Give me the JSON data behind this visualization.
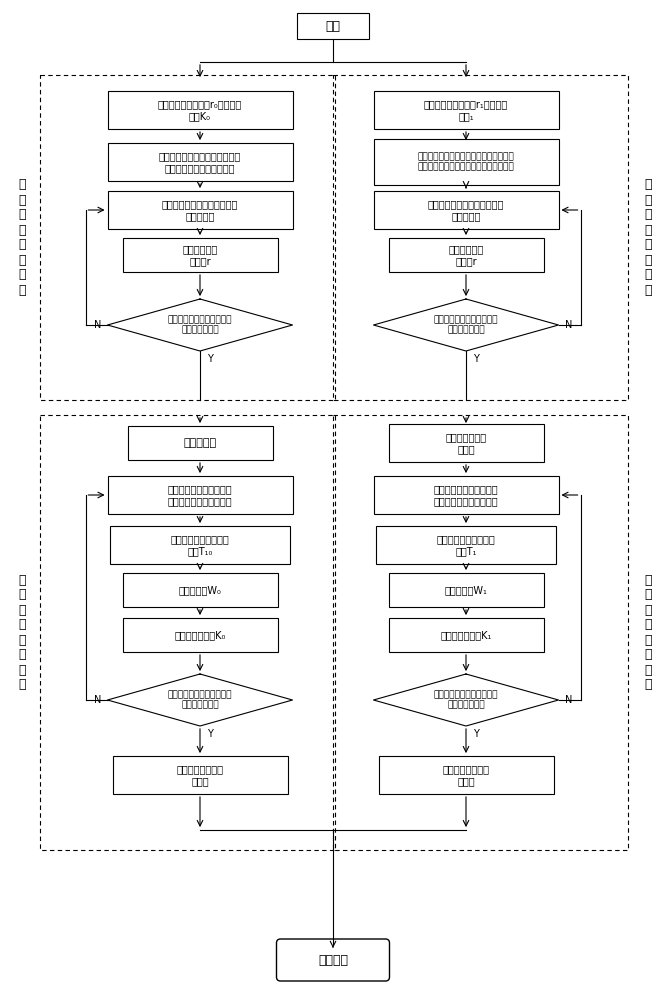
{
  "bg_color": "#ffffff",
  "label_left_top": "解\n锁\n滑\n差\n率\n的\n控\n制",
  "label_left_bottom": "解\n锁\n转\n矩\n比\n的\n控\n制",
  "label_right_top": "闭\n锁\n滑\n差\n率\n的\n控\n制",
  "label_right_bottom": "闭\n锁\n转\n矩\n比\n的\n控\n制",
  "nodes": {
    "start": "开始",
    "end": "程序结束",
    "L_box1": "设定解锁目标滑差率r₀和目标转\n矩比K₀",
    "L_box2": "小油泵启动，电子控制单元控制\n三位四通换向阀在右位工作",
    "L_box3": "实时检测液力变矩器输入轴和\n输出轴转速",
    "L_box4": "实时计算实际\n滑差率r",
    "L_dia1": "判断实际滑差率与解锁目标\n滑差率是否一致",
    "L_box5": "大油泵开启",
    "L_box6": "实时检测液力变矩器输入\n轴和输出轴的转速、转矩",
    "L_box7": "计算闭锁离合器传递的\n力矩T₁₀",
    "L_box8": "计算滑摩功W₀",
    "L_box9": "计算实际转矩比K₀",
    "L_dia2": "判断实际转矩比与解锁目标\n转矩比是否一致",
    "L_box10": "闭锁离合器实现完\n全解锁",
    "R_box1": "设定闭锁目标滑差率r₁和目标转\n矩比₁",
    "R_box2": "关闭大油泵，保持小油泵开启，同时电子\n控制单元控制三位四通换向阀工作在左位",
    "R_box3": "实时检测液力变矩器输入轴和\n输出轴转速",
    "R_box4": "实时计算实际\n滑差率r",
    "R_dia1": "判断实际滑差率与闭锁目标\n滑差率是否一致",
    "R_box5": "增大小油泵的输\n出油压",
    "R_box6": "实时检测液力变矩器输入\n轴和输出轴的转速、转矩",
    "R_box7": "计算闭锁离合器传递的\n力矩T₁",
    "R_box8": "计算滑摩功W₁",
    "R_box9": "计算实际转矩比K₁",
    "R_dia2": "判断实际转矩比与闭锁目标\n转矩比是否一致",
    "R_box10": "闭锁离合器实现完\n全闭锁"
  }
}
